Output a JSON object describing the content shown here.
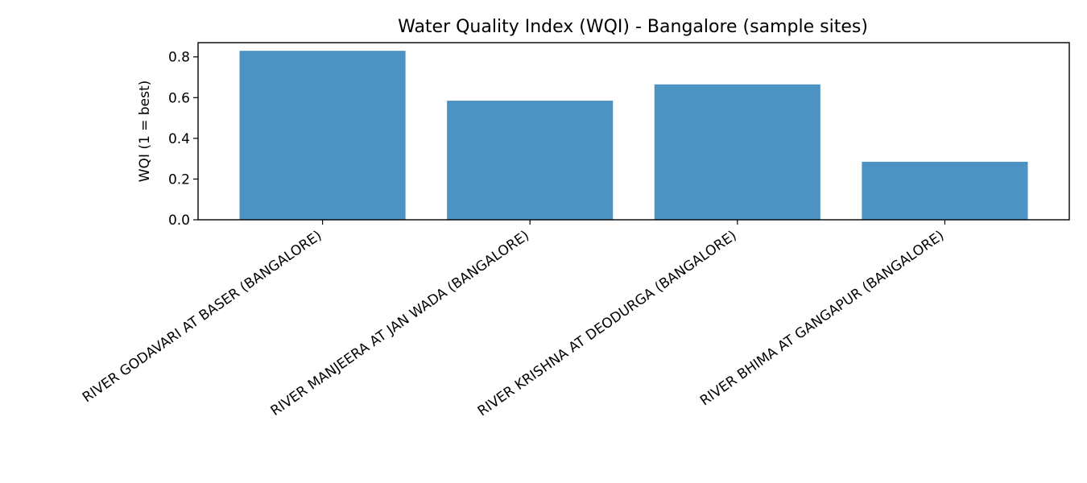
{
  "chart_data": {
    "type": "bar",
    "title": "Water Quality Index (WQI) - Bangalore (sample sites)",
    "xlabel": "",
    "ylabel": "WQI (1 = best)",
    "categories": [
      "RIVER GODAVARI AT BASER (BANGALORE)",
      "RIVER MANJEERA AT JAN WADA (BANGALORE)",
      "RIVER KRISHNA AT DEODURGA (BANGALORE)",
      "RIVER BHIMA AT GANGAPUR (BANGALORE)"
    ],
    "values": [
      0.83,
      0.585,
      0.665,
      0.285
    ],
    "ylim": [
      0,
      0.87
    ],
    "yticks": [
      "0.0",
      "0.2",
      "0.4",
      "0.6",
      "0.8"
    ],
    "bar_color": "#4c92c3",
    "grid": false,
    "legend": "none"
  }
}
